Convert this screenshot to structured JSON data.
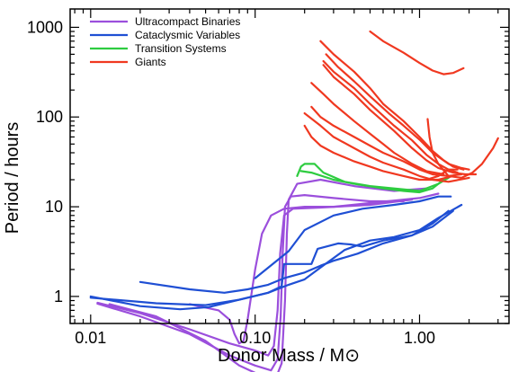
{
  "chart_data": {
    "type": "line",
    "xlabel": "Donor Mass / M⊙",
    "ylabel": "Period / hours",
    "xscale": "log",
    "yscale": "log",
    "xlim": [
      0.0075,
      3.5
    ],
    "ylim": [
      0.5,
      1600
    ],
    "xticks": [
      {
        "value": 0.01,
        "label": "0.01"
      },
      {
        "value": 0.1,
        "label": "0.10"
      },
      {
        "value": 1,
        "label": "1.00"
      }
    ],
    "yticks": [
      {
        "value": 1,
        "label": "1"
      },
      {
        "value": 10,
        "label": "10"
      },
      {
        "value": 100,
        "label": "100"
      },
      {
        "value": 1000,
        "label": "1000"
      }
    ],
    "legend_position": "top-left",
    "series": [
      {
        "name": "Ultracompact Binaries",
        "color": "#9b4fdc",
        "tracks": [
          [
            [
              0.011,
              0.83
            ],
            [
              0.02,
              0.6
            ],
            [
              0.04,
              0.38
            ],
            [
              0.07,
              0.22
            ],
            [
              0.1,
              0.17
            ],
            [
              0.125,
              0.15
            ],
            [
              0.137,
              0.2
            ],
            [
              0.143,
              0.6
            ],
            [
              0.147,
              3
            ],
            [
              0.152,
              10
            ],
            [
              0.165,
              13
            ],
            [
              0.2,
              13.5
            ],
            [
              0.3,
              12.5
            ],
            [
              0.5,
              11.5
            ],
            [
              0.8,
              11.5
            ]
          ],
          [
            [
              0.011,
              0.85
            ],
            [
              0.02,
              0.65
            ],
            [
              0.04,
              0.43
            ],
            [
              0.07,
              0.3
            ],
            [
              0.1,
              0.25
            ],
            [
              0.12,
              0.22
            ],
            [
              0.13,
              0.28
            ],
            [
              0.137,
              0.7
            ],
            [
              0.142,
              3
            ],
            [
              0.15,
              8
            ],
            [
              0.17,
              9.5
            ],
            [
              0.25,
              9.8
            ],
            [
              0.5,
              10.5
            ],
            [
              0.9,
              12
            ]
          ],
          [
            [
              0.013,
              0.82
            ],
            [
              0.025,
              0.6
            ],
            [
              0.05,
              0.32
            ],
            [
              0.08,
              0.17
            ],
            [
              0.11,
              0.13
            ],
            [
              0.133,
              0.12
            ],
            [
              0.145,
              0.18
            ],
            [
              0.152,
              0.9
            ],
            [
              0.156,
              5
            ],
            [
              0.16,
              12
            ],
            [
              0.18,
              18
            ],
            [
              0.25,
              20
            ],
            [
              0.4,
              17
            ],
            [
              0.7,
              15
            ],
            [
              1.1,
              16
            ]
          ],
          [
            [
              0.04,
              0.82
            ],
            [
              0.06,
              0.7
            ],
            [
              0.07,
              0.55
            ],
            [
              0.075,
              0.38
            ],
            [
              0.08,
              0.3
            ],
            [
              0.085,
              0.32
            ],
            [
              0.09,
              0.55
            ],
            [
              0.1,
              2
            ],
            [
              0.11,
              5
            ],
            [
              0.125,
              8
            ],
            [
              0.15,
              9.5
            ],
            [
              0.2,
              10
            ],
            [
              0.3,
              10
            ],
            [
              0.5,
              11
            ],
            [
              1,
              12.5
            ],
            [
              1.3,
              14
            ]
          ]
        ]
      },
      {
        "name": "Cataclysmic Variables",
        "color": "#1f4fd4",
        "tracks": [
          [
            [
              0.01,
              1.0
            ],
            [
              0.02,
              0.78
            ],
            [
              0.035,
              0.72
            ],
            [
              0.052,
              0.76
            ],
            [
              0.08,
              0.92
            ],
            [
              0.12,
              1.1
            ],
            [
              0.16,
              1.35
            ],
            [
              0.2,
              1.55
            ],
            [
              0.25,
              2.1
            ],
            [
              0.35,
              3.3
            ],
            [
              0.5,
              4.2
            ],
            [
              0.7,
              4.6
            ],
            [
              1.0,
              5.5
            ],
            [
              1.3,
              7.5
            ],
            [
              1.8,
              10.5
            ]
          ],
          [
            [
              0.02,
              1.45
            ],
            [
              0.04,
              1.2
            ],
            [
              0.065,
              1.1
            ],
            [
              0.09,
              1.2
            ],
            [
              0.12,
              1.35
            ],
            [
              0.15,
              1.6
            ],
            [
              0.2,
              1.85
            ],
            [
              0.25,
              2.2
            ],
            [
              0.3,
              2.5
            ],
            [
              0.42,
              3.0
            ],
            [
              0.6,
              3.9
            ],
            [
              0.9,
              4.8
            ],
            [
              1.2,
              6.5
            ],
            [
              1.5,
              9
            ]
          ],
          [
            [
              0.01,
              0.97
            ],
            [
              0.025,
              0.84
            ],
            [
              0.05,
              0.8
            ],
            [
              0.08,
              0.92
            ],
            [
              0.12,
              1.1
            ],
            [
              0.145,
              1.3
            ],
            [
              0.15,
              2.3
            ],
            [
              0.22,
              2.3
            ],
            [
              0.24,
              3.4
            ],
            [
              0.32,
              3.9
            ],
            [
              0.38,
              3.8
            ],
            [
              0.45,
              3.6
            ],
            [
              0.6,
              4.2
            ],
            [
              0.9,
              4.8
            ],
            [
              1.2,
              6
            ],
            [
              1.6,
              9
            ]
          ],
          [
            [
              0.1,
              1.6
            ],
            [
              0.16,
              3.2
            ],
            [
              0.2,
              5.5
            ],
            [
              0.3,
              8
            ],
            [
              0.45,
              9.5
            ],
            [
              0.7,
              10.5
            ],
            [
              1.0,
              11.5
            ],
            [
              1.3,
              13
            ],
            [
              1.55,
              13
            ]
          ]
        ]
      },
      {
        "name": "Transition Systems",
        "color": "#2ecc40",
        "tracks": [
          [
            [
              0.18,
              22
            ],
            [
              0.19,
              28
            ],
            [
              0.2,
              30
            ],
            [
              0.23,
              30
            ],
            [
              0.26,
              24
            ],
            [
              0.35,
              19
            ],
            [
              0.5,
              17
            ],
            [
              0.7,
              16
            ],
            [
              1.0,
              15
            ],
            [
              1.3,
              18
            ],
            [
              1.5,
              21
            ]
          ],
          [
            [
              0.19,
              25
            ],
            [
              0.22,
              24
            ],
            [
              0.3,
              20
            ],
            [
              0.4,
              18
            ],
            [
              0.6,
              16
            ],
            [
              0.8,
              15
            ],
            [
              1.0,
              14.5
            ],
            [
              1.2,
              16
            ],
            [
              1.4,
              20
            ]
          ]
        ]
      },
      {
        "name": "Giants",
        "color": "#f03820",
        "tracks": [
          [
            [
              0.5,
              900
            ],
            [
              0.6,
              700
            ],
            [
              0.8,
              520
            ],
            [
              1.0,
              400
            ],
            [
              1.2,
              330
            ],
            [
              1.4,
              300
            ],
            [
              1.6,
              310
            ],
            [
              1.85,
              350
            ]
          ],
          [
            [
              0.25,
              700
            ],
            [
              0.3,
              500
            ],
            [
              0.4,
              320
            ],
            [
              0.5,
              210
            ],
            [
              0.6,
              140
            ],
            [
              0.8,
              90
            ],
            [
              1.0,
              60
            ],
            [
              1.2,
              42
            ],
            [
              1.4,
              33
            ],
            [
              1.6,
              28
            ],
            [
              1.85,
              26
            ]
          ],
          [
            [
              0.27,
              500
            ],
            [
              0.32,
              360
            ],
            [
              0.4,
              250
            ],
            [
              0.5,
              170
            ],
            [
              0.65,
              110
            ],
            [
              0.8,
              80
            ],
            [
              1.0,
              56
            ],
            [
              1.2,
              40
            ],
            [
              1.5,
              30
            ],
            [
              1.8,
              27
            ],
            [
              2.0,
              26
            ]
          ],
          [
            [
              0.26,
              420
            ],
            [
              0.3,
              320
            ],
            [
              0.4,
              210
            ],
            [
              0.5,
              140
            ],
            [
              0.7,
              80
            ],
            [
              0.9,
              55
            ],
            [
              1.1,
              38
            ],
            [
              1.3,
              30
            ],
            [
              1.5,
              26
            ],
            [
              1.7,
              24
            ]
          ],
          [
            [
              0.26,
              380
            ],
            [
              0.3,
              280
            ],
            [
              0.4,
              180
            ],
            [
              0.5,
              120
            ],
            [
              0.7,
              70
            ],
            [
              0.9,
              45
            ],
            [
              1.1,
              33
            ],
            [
              1.3,
              27
            ],
            [
              1.6,
              24
            ],
            [
              1.9,
              23
            ],
            [
              2.2,
              23
            ]
          ],
          [
            [
              0.22,
              240
            ],
            [
              0.26,
              180
            ],
            [
              0.3,
              140
            ],
            [
              0.4,
              90
            ],
            [
              0.5,
              65
            ],
            [
              0.6,
              50
            ],
            [
              0.7,
              40
            ],
            [
              0.9,
              30
            ],
            [
              1.1,
              25
            ],
            [
              1.4,
              23
            ]
          ],
          [
            [
              0.22,
              130
            ],
            [
              0.25,
              100
            ],
            [
              0.3,
              80
            ],
            [
              0.4,
              60
            ],
            [
              0.5,
              48
            ],
            [
              0.6,
              40
            ],
            [
              0.8,
              32
            ],
            [
              1.0,
              26
            ],
            [
              1.2,
              23
            ],
            [
              1.5,
              22
            ],
            [
              1.8,
              23
            ]
          ],
          [
            [
              0.2,
              110
            ],
            [
              0.25,
              80
            ],
            [
              0.3,
              60
            ],
            [
              0.4,
              45
            ],
            [
              0.5,
              36
            ],
            [
              0.6,
              31
            ],
            [
              0.8,
              26
            ],
            [
              1.0,
              22
            ],
            [
              1.2,
              20
            ],
            [
              1.5,
              19
            ],
            [
              2.0,
              21
            ]
          ],
          [
            [
              0.2,
              80
            ],
            [
              0.22,
              60
            ],
            [
              0.25,
              48
            ],
            [
              0.3,
              40
            ],
            [
              0.4,
              32
            ],
            [
              0.5,
              28
            ],
            [
              0.6,
              25
            ],
            [
              0.8,
              22
            ],
            [
              1.0,
              20
            ],
            [
              1.3,
              20
            ],
            [
              1.6,
              22
            ]
          ],
          [
            [
              1.12,
              95
            ],
            [
              1.15,
              60
            ],
            [
              1.2,
              40
            ],
            [
              1.3,
              30
            ],
            [
              1.5,
              22
            ],
            [
              1.8,
              21
            ],
            [
              2.1,
              24
            ],
            [
              2.4,
              30
            ],
            [
              2.8,
              45
            ],
            [
              3.0,
              58
            ]
          ],
          [
            [
              1.1,
              20
            ],
            [
              1.3,
              22
            ],
            [
              1.5,
              26
            ],
            [
              1.7,
              26
            ]
          ]
        ]
      }
    ]
  }
}
